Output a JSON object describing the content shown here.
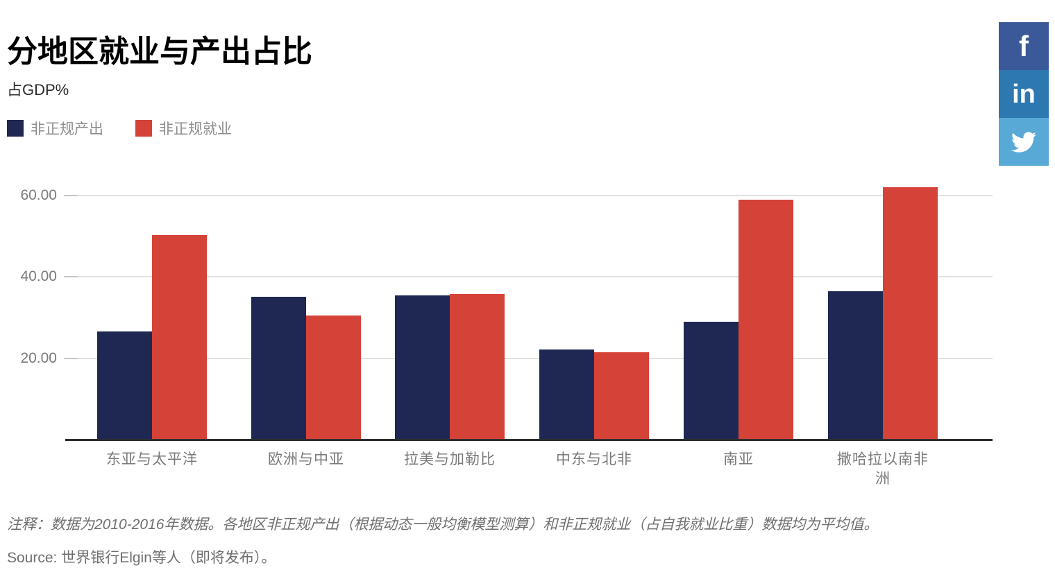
{
  "header": {
    "title": "分地区就业与产出占比",
    "subtitle": "占GDP%"
  },
  "legend": {
    "items": [
      {
        "label": "非正规产出",
        "color": "#1e2852"
      },
      {
        "label": "非正规就业",
        "color": "#d54237"
      }
    ]
  },
  "social": {
    "items": [
      {
        "name": "facebook",
        "glyph": "f",
        "color": "#3b5998"
      },
      {
        "name": "linkedin",
        "glyph": "in",
        "color": "#2d78b0"
      },
      {
        "name": "twitter",
        "glyph": "twitter-bird",
        "color": "#58a9d6"
      }
    ]
  },
  "chart_data": {
    "type": "bar",
    "title": "分地区就业与产出占比",
    "ylabel": "占GDP%",
    "categories": [
      "东亚与太平洋",
      "欧洲与中亚",
      "拉美与加勒比",
      "中东与北非",
      "南亚",
      "撒哈拉以南非洲"
    ],
    "series": [
      {
        "name": "非正规产出",
        "color": "#1e2852",
        "values": [
          26.6,
          35.1,
          35.4,
          22.2,
          29.0,
          36.4
        ]
      },
      {
        "name": "非正规就业",
        "color": "#d54237",
        "values": [
          50.2,
          30.4,
          35.8,
          21.5,
          58.9,
          62.0
        ]
      }
    ],
    "yticks": [
      20,
      40,
      60
    ],
    "ytick_labels": [
      "20.00",
      "40.00",
      "60.00"
    ],
    "ylim": [
      0,
      67
    ],
    "grid": true,
    "legend_position": "top-left"
  },
  "footer": {
    "note": "注释：数据为2010-2016年数据。各地区非正规产出（根据动态一般均衡模型测算）和非正规就业（占自我就业比重）数据均为平均值。",
    "source": "Source: 世界银行Elgin等人（即将发布）。"
  }
}
